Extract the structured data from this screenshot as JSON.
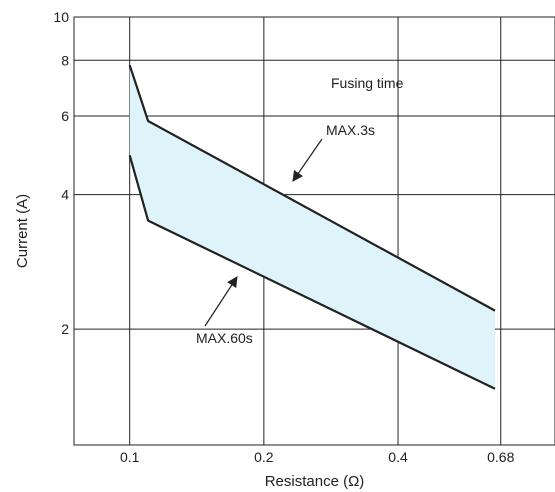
{
  "chart_data": {
    "type": "area",
    "title": "",
    "xlabel": "Resistance (Ω)",
    "ylabel": "Current (A)",
    "x_scale": "log",
    "y_scale": "log",
    "xlim": [
      0.075,
      0.9
    ],
    "ylim": [
      1.1,
      10
    ],
    "x_ticks": [
      0.1,
      0.2,
      0.4,
      0.68
    ],
    "x_tick_labels": [
      "0.1",
      "0.2",
      "0.4",
      "0.68"
    ],
    "y_ticks": [
      2,
      4,
      6,
      8,
      10
    ],
    "y_tick_labels": [
      "2",
      "4",
      "6",
      "8",
      "10"
    ],
    "grid": true,
    "legend": "none",
    "fill_color": "#dff3fb",
    "line_color": "#222222",
    "series": [
      {
        "name": "MAX.3s",
        "x": [
          0.1,
          0.11,
          0.66
        ],
        "y": [
          7.8,
          5.85,
          2.2
        ]
      },
      {
        "name": "MAX.60s",
        "x": [
          0.1,
          0.11,
          0.66
        ],
        "y": [
          4.9,
          3.5,
          1.47
        ]
      }
    ],
    "annotations": [
      {
        "id": "fusing",
        "text": "Fusing time",
        "arrow": false
      },
      {
        "id": "max3",
        "text": "MAX.3s",
        "arrow": true
      },
      {
        "id": "max60",
        "text": "MAX.60s",
        "arrow": true
      }
    ]
  }
}
